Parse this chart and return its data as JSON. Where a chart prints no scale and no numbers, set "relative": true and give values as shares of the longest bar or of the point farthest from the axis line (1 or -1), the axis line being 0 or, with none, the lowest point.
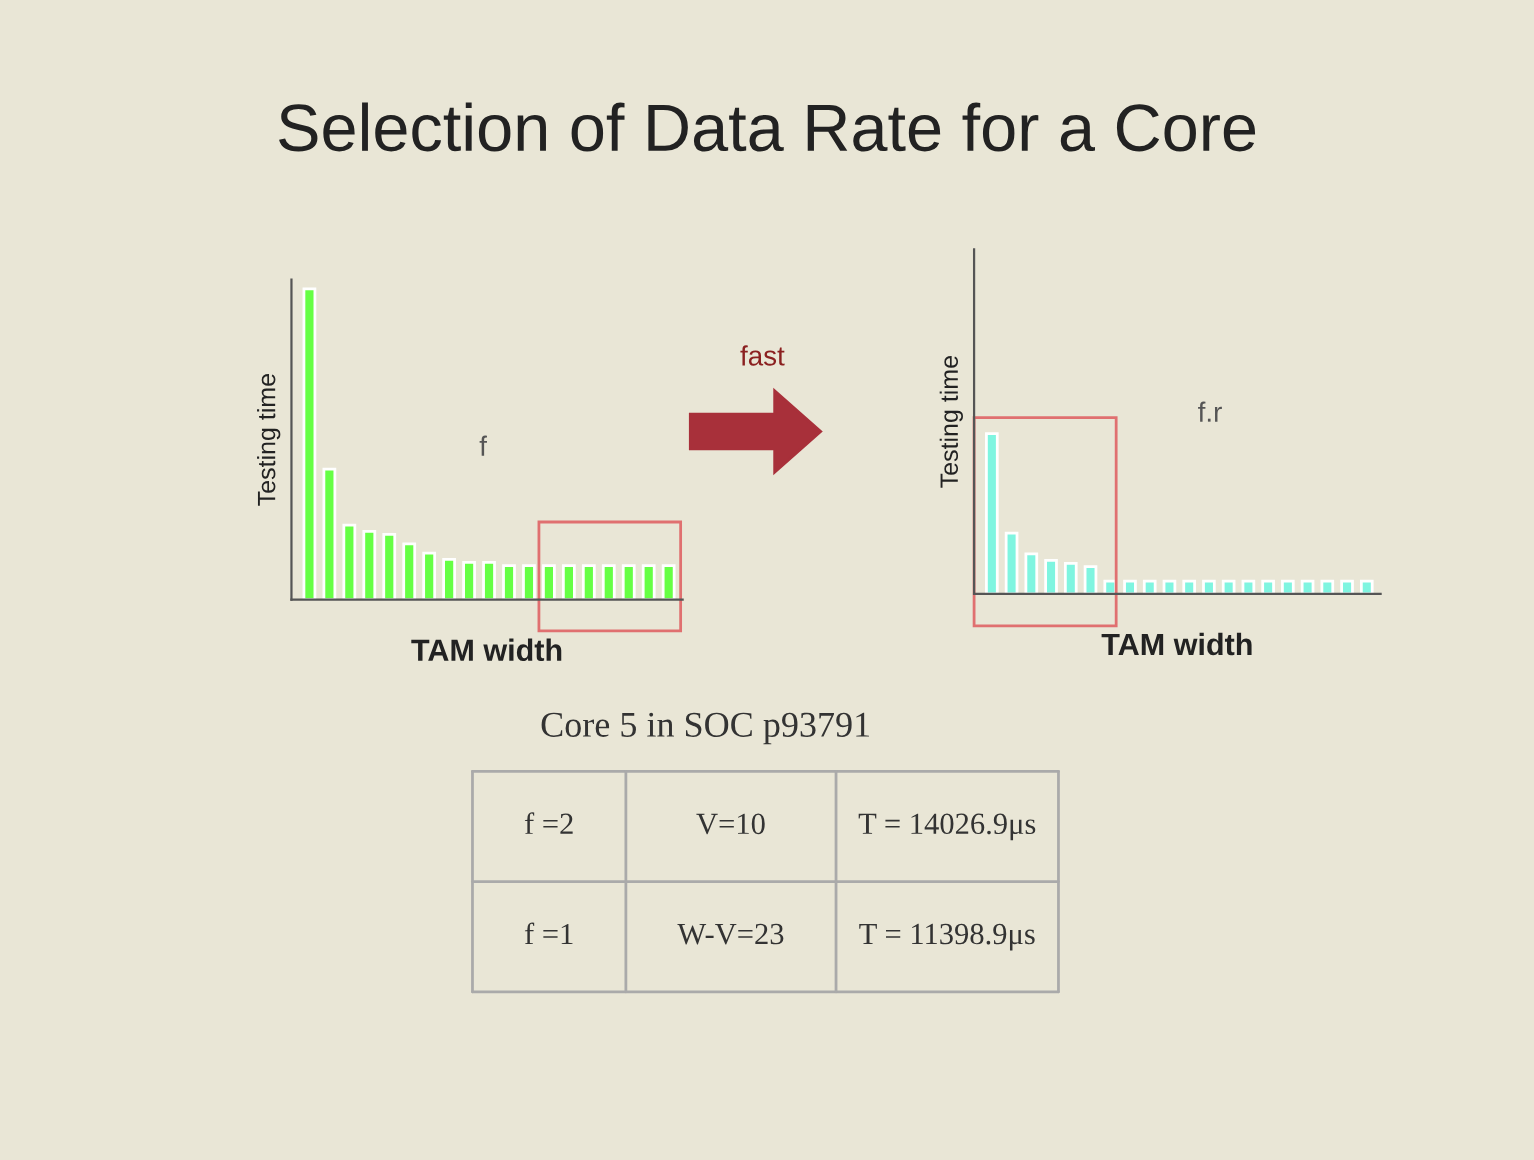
{
  "chart_data": [
    {
      "type": "bar",
      "title": "Selection of Data Rate for a Core",
      "xlabel": "TAM width",
      "ylabel": "Testing time",
      "relative": true,
      "tick_labels": false,
      "grid": false,
      "categories": [
        null,
        null,
        null,
        null,
        null,
        null,
        null,
        null,
        null,
        null,
        null,
        null,
        null,
        null,
        null,
        null,
        null,
        null,
        null
      ],
      "values": [
        1,
        0.42,
        0.24,
        0.22,
        0.21,
        0.18,
        0.15,
        0.13,
        0.12,
        0.12,
        0.11,
        0.11,
        0.11,
        0.11,
        0.11,
        0.11,
        0.11,
        0.11,
        0.11
      ],
      "color": "#66ff44",
      "annotations": [
        "f",
        "fast"
      ]
    },
    {
      "type": "bar",
      "xlabel": "TAM width",
      "ylabel": "Testing time",
      "relative": true,
      "tick_labels": false,
      "grid": false,
      "categories": [
        null,
        null,
        null,
        null,
        null,
        null,
        null,
        null,
        null,
        null,
        null,
        null,
        null,
        null,
        null,
        null,
        null,
        null,
        null,
        null
      ],
      "values": [
        1,
        0.38,
        0.25,
        0.21,
        0.19,
        0.17,
        0.08,
        0.08,
        0.08,
        0.08,
        0.08,
        0.08,
        0.08,
        0.08,
        0.08,
        0.08,
        0.08,
        0.08,
        0.08,
        0.08
      ],
      "color": "#7ff5e0",
      "annotations": [
        "f.r"
      ]
    },
    {
      "type": "other",
      "title": "Core 5 in SOC p93791",
      "annotations": [
        "f =2",
        "V=10",
        "T = 14026.9μs",
        "f =1",
        "W-V=23",
        "T = 11398.9μs"
      ]
    }
  ]
}
